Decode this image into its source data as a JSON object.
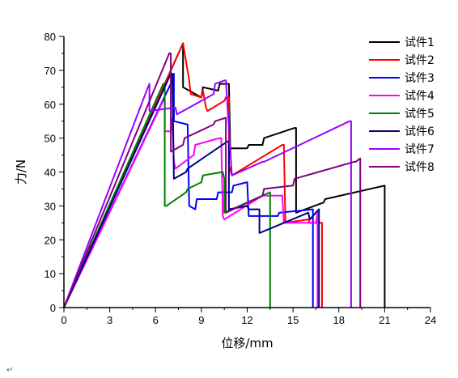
{
  "chart_data": {
    "type": "line",
    "xlabel": "位移/mm",
    "ylabel": "力/N",
    "xlim": [
      0,
      24
    ],
    "ylim": [
      0,
      80
    ],
    "xticks": [
      0,
      3,
      6,
      9,
      12,
      15,
      18,
      21,
      24
    ],
    "yticks": [
      0,
      10,
      20,
      30,
      40,
      50,
      60,
      70,
      80
    ],
    "xtick_labels": [
      "0",
      "3",
      "6",
      "9",
      "12",
      "15",
      "18",
      "21",
      "24"
    ],
    "ytick_labels": [
      "0",
      "10",
      "20",
      "30",
      "40",
      "50",
      "60",
      "70",
      "80"
    ],
    "grid": false,
    "legend_position": "top-right",
    "series": [
      {
        "name": "试件1",
        "color": "#000000",
        "x": [
          0,
          7.7,
          7.8,
          7.8,
          9.0,
          9.1,
          10.1,
          10.2,
          10.8,
          10.9,
          10.9,
          12.0,
          12.1,
          13.0,
          13.1,
          15.1,
          15.2,
          15.2,
          17.0,
          17.1,
          21.0,
          21.0
        ],
        "y": [
          0,
          77,
          78,
          65,
          62,
          65,
          64,
          66,
          66,
          45,
          47,
          47,
          48,
          48,
          50,
          53,
          53,
          28,
          31,
          32,
          36,
          0
        ]
      },
      {
        "name": "试件2",
        "color": "#ff0000",
        "x": [
          0,
          7.7,
          7.8,
          8.2,
          8.3,
          9.0,
          9.1,
          9.3,
          9.4,
          10.5,
          10.6,
          10.8,
          10.8,
          11.0,
          14.3,
          14.4,
          14.5,
          16.0,
          16.1,
          16.9,
          16.9
        ],
        "y": [
          0,
          77,
          78,
          67,
          63,
          62,
          64,
          59,
          58,
          61,
          62,
          62,
          42,
          39,
          48,
          48,
          25,
          26,
          25,
          25,
          0
        ]
      },
      {
        "name": "试件3",
        "color": "#0000ff",
        "x": [
          0,
          7.1,
          7.2,
          7.2,
          8.1,
          8.2,
          8.6,
          8.7,
          10.0,
          10.1,
          11.0,
          11.1,
          12.0,
          12.1,
          14.0,
          14.1,
          16.3,
          16.3
        ],
        "y": [
          0,
          67,
          69,
          55,
          54,
          30,
          29,
          32,
          32,
          34,
          34,
          36,
          37,
          27,
          27,
          28,
          29,
          0
        ]
      },
      {
        "name": "试件4",
        "color": "#ff00ff",
        "x": [
          0,
          6.5,
          6.6,
          6.6,
          7.0,
          7.1,
          7.2,
          7.3,
          8.5,
          8.6,
          10.2,
          10.3,
          10.4,
          10.5,
          13.0,
          14.3,
          14.4,
          16.5,
          16.6,
          16.6
        ],
        "y": [
          0,
          61,
          61,
          52,
          52,
          56,
          43,
          41,
          45,
          48,
          50,
          50,
          27,
          26,
          33,
          33,
          25,
          25,
          28,
          0
        ]
      },
      {
        "name": "试件5",
        "color": "#008000",
        "x": [
          0,
          6.5,
          6.6,
          6.6,
          6.7,
          8.0,
          8.1,
          9.0,
          9.1,
          10.4,
          10.5,
          10.5,
          13.5,
          13.5
        ],
        "y": [
          0,
          66,
          66,
          30,
          30,
          34,
          35,
          37,
          39,
          40,
          38,
          28,
          34,
          0
        ]
      },
      {
        "name": "试件6",
        "color": "#000080",
        "x": [
          0,
          7.0,
          7.1,
          7.2,
          8.0,
          8.1,
          10.7,
          10.8,
          10.8,
          12.0,
          12.1,
          12.8,
          12.8,
          16.0,
          16.1,
          16.7,
          16.7
        ],
        "y": [
          0,
          69,
          69,
          38,
          40,
          41,
          49,
          49,
          29,
          30,
          29,
          29,
          22,
          28,
          26,
          29,
          0
        ]
      },
      {
        "name": "试件7",
        "color": "#9900ff",
        "x": [
          0,
          5.5,
          5.6,
          5.6,
          7.3,
          7.4,
          9.8,
          9.9,
          10.5,
          10.6,
          11.0,
          13.0,
          13.1,
          18.7,
          18.8,
          18.8
        ],
        "y": [
          0,
          65,
          66,
          58,
          59,
          57,
          63,
          66,
          67,
          67,
          39,
          43,
          43,
          55,
          55,
          0
        ]
      },
      {
        "name": "试件8",
        "color": "#800080",
        "x": [
          0,
          6.9,
          7.0,
          7.0,
          7.8,
          7.9,
          9.8,
          9.9,
          10.6,
          10.6,
          13.0,
          13.1,
          15.0,
          15.1,
          19.0,
          19.1,
          19.4,
          19.4
        ],
        "y": [
          0,
          75,
          75,
          46,
          48,
          50,
          54,
          55,
          56,
          28,
          33,
          35,
          36,
          38,
          43,
          43,
          44,
          0
        ]
      }
    ]
  },
  "footer_mark": "↵"
}
